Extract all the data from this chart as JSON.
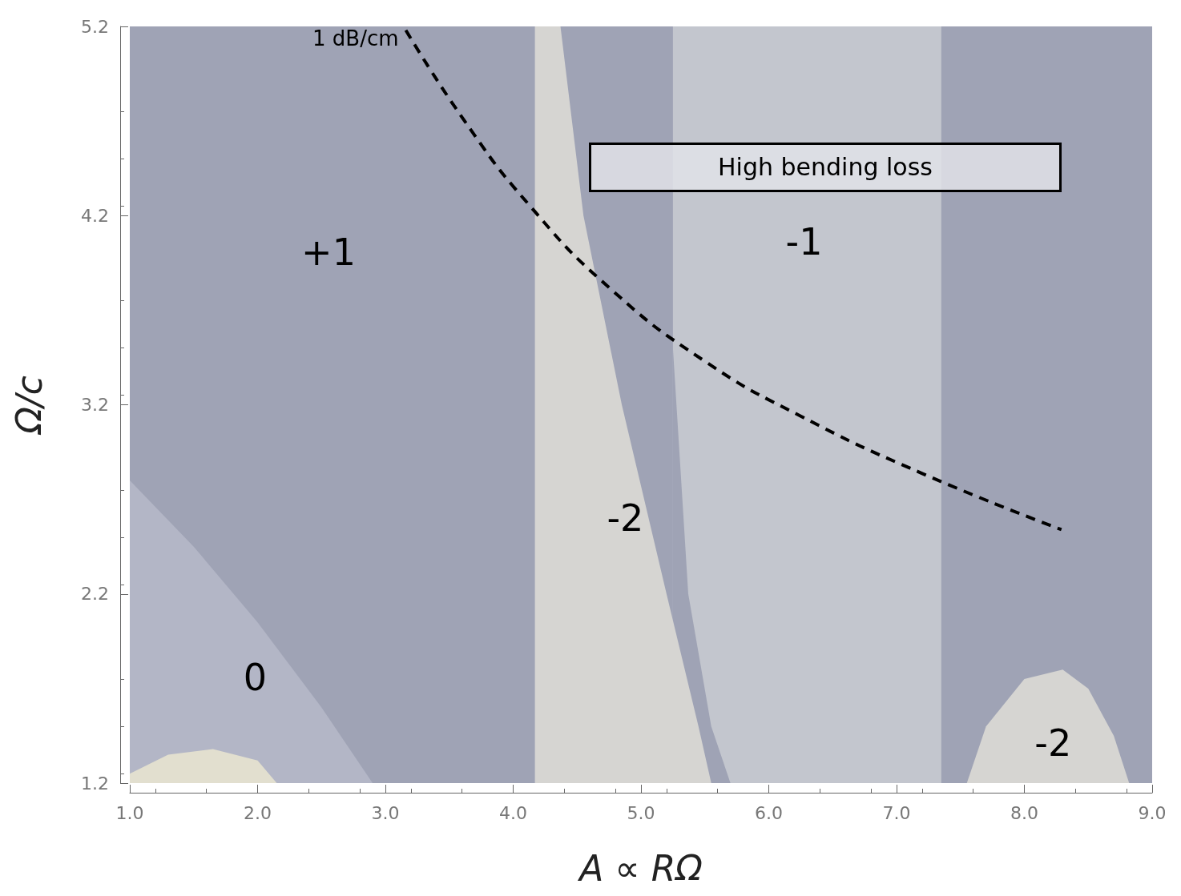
{
  "chart_data": {
    "type": "line",
    "xlabel": "A ∝ RΩ",
    "ylabel": "Ω/c",
    "xlim": [
      1,
      9
    ],
    "xticks": [
      {
        "value": 1,
        "label": "1.0"
      },
      {
        "value": 2,
        "label": "2.0"
      },
      {
        "value": 3,
        "label": "3.0"
      },
      {
        "value": 4,
        "label": "4.0"
      },
      {
        "value": 5,
        "label": "5.0"
      },
      {
        "value": 6,
        "label": "6.0"
      },
      {
        "value": 7,
        "label": "7.0"
      },
      {
        "value": 8,
        "label": "8.0"
      },
      {
        "value": 9,
        "label": "9.0"
      }
    ],
    "ylim": [
      1.2,
      5.2
    ],
    "yticks": [
      1.2,
      2.2,
      3.2,
      4.2,
      5.2
    ],
    "grid": false,
    "marker": "none",
    "bands": [
      {
        "axis": "x",
        "from": 5.25,
        "to": 7.35,
        "color": "#c3c6ce",
        "label": "-1"
      }
    ],
    "series": [
      {
        "type": "area",
        "name": "0",
        "color": "#b3b6c6",
        "x": [
          1,
          1.5,
          2,
          2.5,
          2.9
        ],
        "values": [
          2.8,
          2.45,
          2.05,
          1.6,
          1.2
        ]
      },
      {
        "type": "area",
        "color": "#e2dfcf",
        "x": [
          1,
          1.3,
          1.65,
          2,
          2.15
        ],
        "values": [
          1.25,
          1.35,
          1.38,
          1.32,
          1.2
        ]
      },
      {
        "type": "area",
        "color": "#9fa3b5",
        "x": [
          5.25,
          5.37,
          5.55,
          5.7
        ],
        "values": [
          3.5,
          2.2,
          1.5,
          1.2
        ]
      },
      {
        "type": "area",
        "name": "-2",
        "color": "#d6d5d2",
        "x": [
          4.17,
          4.37,
          4.55,
          4.85,
          5.2,
          5.45,
          5.55
        ],
        "values": [
          5.2,
          5.2,
          4.2,
          3.2,
          2.2,
          1.5,
          1.2
        ]
      },
      {
        "type": "area",
        "name": "-2",
        "color": "#d6d5d2",
        "x": [
          7.55,
          7.7,
          8,
          8.3,
          8.5,
          8.7,
          8.82
        ],
        "values": [
          1.2,
          1.5,
          1.75,
          1.8,
          1.7,
          1.45,
          1.2
        ]
      },
      {
        "type": "line",
        "name": "1 dB/cm",
        "color": "#000000",
        "line_style": "dashed",
        "x": [
          3.16,
          3.62,
          4.12,
          4.75,
          5.5,
          6.25,
          7.19,
          8.29
        ],
        "values": [
          5.18,
          4.7,
          4.26,
          3.82,
          3.43,
          3.14,
          2.84,
          2.54
        ]
      }
    ],
    "annotations": [
      "High bending loss",
      "+1"
    ]
  }
}
